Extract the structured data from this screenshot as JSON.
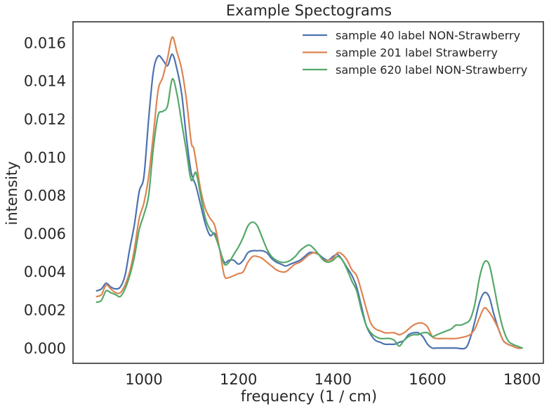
{
  "chart_data": {
    "type": "line",
    "title": "Example Spectograms",
    "xlabel": "frequency (1 / cm)",
    "ylabel": "intensity",
    "xlim": [
      850,
      1845
    ],
    "ylim": [
      -0.0008,
      0.0171
    ],
    "xticks": [
      1000,
      1200,
      1400,
      1600,
      1800
    ],
    "xtick_labels": [
      "1000",
      "1200",
      "1400",
      "1600",
      "1800"
    ],
    "yticks": [
      0.0,
      0.002,
      0.004,
      0.006,
      0.008,
      0.01,
      0.012,
      0.014,
      0.016
    ],
    "ytick_labels": [
      "0.000",
      "0.002",
      "0.004",
      "0.006",
      "0.008",
      "0.010",
      "0.012",
      "0.014",
      "0.016"
    ],
    "grid": false,
    "legend_position": "top-right",
    "series": [
      {
        "name": "sample 40 label NON-Strawberry",
        "color": "#4c72b0",
        "points": [
          [
            900,
            0.003
          ],
          [
            910,
            0.0031
          ],
          [
            920,
            0.0034
          ],
          [
            930,
            0.0032
          ],
          [
            940,
            0.0031
          ],
          [
            950,
            0.0032
          ],
          [
            960,
            0.0038
          ],
          [
            970,
            0.0052
          ],
          [
            980,
            0.0065
          ],
          [
            990,
            0.0082
          ],
          [
            1000,
            0.009
          ],
          [
            1010,
            0.012
          ],
          [
            1020,
            0.0145
          ],
          [
            1030,
            0.0153
          ],
          [
            1040,
            0.0151
          ],
          [
            1050,
            0.0148
          ],
          [
            1060,
            0.0154
          ],
          [
            1070,
            0.0146
          ],
          [
            1080,
            0.0133
          ],
          [
            1090,
            0.011
          ],
          [
            1100,
            0.0092
          ],
          [
            1110,
            0.0085
          ],
          [
            1120,
            0.0075
          ],
          [
            1130,
            0.0065
          ],
          [
            1140,
            0.0059
          ],
          [
            1150,
            0.006
          ],
          [
            1160,
            0.0052
          ],
          [
            1170,
            0.0045
          ],
          [
            1180,
            0.0046
          ],
          [
            1190,
            0.0046
          ],
          [
            1200,
            0.0044
          ],
          [
            1210,
            0.0046
          ],
          [
            1220,
            0.005
          ],
          [
            1230,
            0.0051
          ],
          [
            1240,
            0.0051
          ],
          [
            1250,
            0.0051
          ],
          [
            1260,
            0.005
          ],
          [
            1270,
            0.0047
          ],
          [
            1280,
            0.0045
          ],
          [
            1290,
            0.0044
          ],
          [
            1300,
            0.0043
          ],
          [
            1310,
            0.0044
          ],
          [
            1320,
            0.0045
          ],
          [
            1330,
            0.0046
          ],
          [
            1340,
            0.0048
          ],
          [
            1350,
            0.005
          ],
          [
            1360,
            0.005
          ],
          [
            1370,
            0.0049
          ],
          [
            1380,
            0.0047
          ],
          [
            1390,
            0.0046
          ],
          [
            1400,
            0.0048
          ],
          [
            1410,
            0.0049
          ],
          [
            1420,
            0.0046
          ],
          [
            1430,
            0.0042
          ],
          [
            1440,
            0.0038
          ],
          [
            1450,
            0.0032
          ],
          [
            1460,
            0.0022
          ],
          [
            1470,
            0.0012
          ],
          [
            1480,
            0.0007
          ],
          [
            1490,
            0.0004
          ],
          [
            1500,
            0.0003
          ],
          [
            1510,
            0.0002
          ],
          [
            1520,
            0.0002
          ],
          [
            1530,
            0.0002
          ],
          [
            1540,
            0.0003
          ],
          [
            1550,
            0.0004
          ],
          [
            1560,
            0.0007
          ],
          [
            1570,
            0.0008
          ],
          [
            1580,
            0.0008
          ],
          [
            1590,
            0.0006
          ],
          [
            1600,
            0.0002
          ],
          [
            1610,
            0.0
          ],
          [
            1620,
            0.0
          ],
          [
            1640,
            0.0
          ],
          [
            1660,
            0.0
          ],
          [
            1680,
            0.0
          ],
          [
            1690,
            0.0005
          ],
          [
            1700,
            0.0014
          ],
          [
            1710,
            0.0024
          ],
          [
            1720,
            0.0029
          ],
          [
            1730,
            0.0027
          ],
          [
            1740,
            0.0018
          ],
          [
            1750,
            0.001
          ],
          [
            1760,
            0.0004
          ],
          [
            1770,
            0.0002
          ],
          [
            1780,
            0.0001
          ],
          [
            1790,
            0.0
          ],
          [
            1800,
            0.0
          ]
        ]
      },
      {
        "name": "sample 201 label Strawberry",
        "color": "#dd8452",
        "points": [
          [
            900,
            0.0027
          ],
          [
            910,
            0.0028
          ],
          [
            920,
            0.0033
          ],
          [
            930,
            0.0031
          ],
          [
            940,
            0.0029
          ],
          [
            950,
            0.0029
          ],
          [
            960,
            0.0033
          ],
          [
            970,
            0.004
          ],
          [
            980,
            0.0052
          ],
          [
            990,
            0.0068
          ],
          [
            1000,
            0.0076
          ],
          [
            1010,
            0.009
          ],
          [
            1020,
            0.0112
          ],
          [
            1030,
            0.0135
          ],
          [
            1040,
            0.0142
          ],
          [
            1050,
            0.0152
          ],
          [
            1060,
            0.0163
          ],
          [
            1070,
            0.0155
          ],
          [
            1080,
            0.0146
          ],
          [
            1090,
            0.013
          ],
          [
            1100,
            0.0108
          ],
          [
            1105,
            0.0105
          ],
          [
            1110,
            0.0098
          ],
          [
            1120,
            0.0083
          ],
          [
            1130,
            0.0073
          ],
          [
            1140,
            0.0068
          ],
          [
            1150,
            0.0064
          ],
          [
            1160,
            0.0052
          ],
          [
            1170,
            0.0038
          ],
          [
            1180,
            0.0037
          ],
          [
            1190,
            0.0038
          ],
          [
            1200,
            0.0039
          ],
          [
            1210,
            0.004
          ],
          [
            1220,
            0.0045
          ],
          [
            1230,
            0.0048
          ],
          [
            1240,
            0.0048
          ],
          [
            1250,
            0.0047
          ],
          [
            1260,
            0.0045
          ],
          [
            1270,
            0.0043
          ],
          [
            1280,
            0.0041
          ],
          [
            1290,
            0.004
          ],
          [
            1300,
            0.004
          ],
          [
            1310,
            0.0042
          ],
          [
            1320,
            0.0044
          ],
          [
            1330,
            0.0045
          ],
          [
            1340,
            0.0047
          ],
          [
            1350,
            0.0049
          ],
          [
            1360,
            0.005
          ],
          [
            1370,
            0.0049
          ],
          [
            1380,
            0.0046
          ],
          [
            1390,
            0.0046
          ],
          [
            1400,
            0.0047
          ],
          [
            1410,
            0.005
          ],
          [
            1420,
            0.0049
          ],
          [
            1430,
            0.0046
          ],
          [
            1440,
            0.0041
          ],
          [
            1450,
            0.0038
          ],
          [
            1460,
            0.003
          ],
          [
            1470,
            0.0021
          ],
          [
            1480,
            0.0013
          ],
          [
            1490,
            0.001
          ],
          [
            1500,
            0.0009
          ],
          [
            1510,
            0.0008
          ],
          [
            1520,
            0.0008
          ],
          [
            1530,
            0.0008
          ],
          [
            1540,
            0.0007
          ],
          [
            1550,
            0.0008
          ],
          [
            1560,
            0.001
          ],
          [
            1570,
            0.0012
          ],
          [
            1580,
            0.0013
          ],
          [
            1590,
            0.0013
          ],
          [
            1600,
            0.0011
          ],
          [
            1610,
            0.0006
          ],
          [
            1620,
            0.0005
          ],
          [
            1640,
            0.0005
          ],
          [
            1660,
            0.0005
          ],
          [
            1680,
            0.0006
          ],
          [
            1690,
            0.0007
          ],
          [
            1700,
            0.001
          ],
          [
            1710,
            0.0016
          ],
          [
            1720,
            0.0021
          ],
          [
            1730,
            0.0019
          ],
          [
            1740,
            0.0015
          ],
          [
            1750,
            0.001
          ],
          [
            1760,
            0.0004
          ],
          [
            1770,
            0.0002
          ],
          [
            1780,
            0.0001
          ],
          [
            1790,
            0.0
          ],
          [
            1800,
            0.0
          ]
        ]
      },
      {
        "name": "sample 620 label NON-Strawberry",
        "color": "#55a868",
        "points": [
          [
            900,
            0.0024
          ],
          [
            910,
            0.0025
          ],
          [
            920,
            0.003
          ],
          [
            930,
            0.0029
          ],
          [
            940,
            0.0028
          ],
          [
            950,
            0.0027
          ],
          [
            960,
            0.0031
          ],
          [
            970,
            0.0038
          ],
          [
            980,
            0.0048
          ],
          [
            990,
            0.0062
          ],
          [
            1000,
            0.007
          ],
          [
            1010,
            0.008
          ],
          [
            1020,
            0.0105
          ],
          [
            1030,
            0.0122
          ],
          [
            1040,
            0.0124
          ],
          [
            1050,
            0.0127
          ],
          [
            1060,
            0.0141
          ],
          [
            1070,
            0.0133
          ],
          [
            1080,
            0.0118
          ],
          [
            1090,
            0.0103
          ],
          [
            1100,
            0.0088
          ],
          [
            1110,
            0.0092
          ],
          [
            1120,
            0.008
          ],
          [
            1130,
            0.0068
          ],
          [
            1140,
            0.0062
          ],
          [
            1150,
            0.0059
          ],
          [
            1160,
            0.0052
          ],
          [
            1170,
            0.0044
          ],
          [
            1180,
            0.0045
          ],
          [
            1190,
            0.0049
          ],
          [
            1200,
            0.0053
          ],
          [
            1210,
            0.0058
          ],
          [
            1220,
            0.0064
          ],
          [
            1230,
            0.0066
          ],
          [
            1240,
            0.0064
          ],
          [
            1250,
            0.0058
          ],
          [
            1260,
            0.0052
          ],
          [
            1270,
            0.0048
          ],
          [
            1280,
            0.0046
          ],
          [
            1290,
            0.0045
          ],
          [
            1300,
            0.0045
          ],
          [
            1310,
            0.0046
          ],
          [
            1320,
            0.0048
          ],
          [
            1330,
            0.0051
          ],
          [
            1340,
            0.0053
          ],
          [
            1350,
            0.0054
          ],
          [
            1360,
            0.0052
          ],
          [
            1370,
            0.0049
          ],
          [
            1380,
            0.0046
          ],
          [
            1390,
            0.0045
          ],
          [
            1400,
            0.0046
          ],
          [
            1410,
            0.0048
          ],
          [
            1420,
            0.0046
          ],
          [
            1430,
            0.0041
          ],
          [
            1440,
            0.0035
          ],
          [
            1450,
            0.003
          ],
          [
            1460,
            0.002
          ],
          [
            1470,
            0.0012
          ],
          [
            1480,
            0.0008
          ],
          [
            1490,
            0.0006
          ],
          [
            1500,
            0.0005
          ],
          [
            1510,
            0.0005
          ],
          [
            1520,
            0.0005
          ],
          [
            1530,
            0.0004
          ],
          [
            1540,
            0.0001
          ],
          [
            1550,
            0.0004
          ],
          [
            1560,
            0.0006
          ],
          [
            1570,
            0.0007
          ],
          [
            1580,
            0.0007
          ],
          [
            1590,
            0.0008
          ],
          [
            1600,
            0.0008
          ],
          [
            1610,
            0.0006
          ],
          [
            1620,
            0.0007
          ],
          [
            1630,
            0.0008
          ],
          [
            1640,
            0.0009
          ],
          [
            1650,
            0.001
          ],
          [
            1660,
            0.0012
          ],
          [
            1670,
            0.0012
          ],
          [
            1680,
            0.0013
          ],
          [
            1690,
            0.0015
          ],
          [
            1700,
            0.0023
          ],
          [
            1710,
            0.0037
          ],
          [
            1720,
            0.0045
          ],
          [
            1730,
            0.0044
          ],
          [
            1740,
            0.0033
          ],
          [
            1750,
            0.002
          ],
          [
            1760,
            0.001
          ],
          [
            1770,
            0.0004
          ],
          [
            1780,
            0.0002
          ],
          [
            1790,
            0.0001
          ],
          [
            1800,
            0.0
          ]
        ]
      }
    ]
  }
}
